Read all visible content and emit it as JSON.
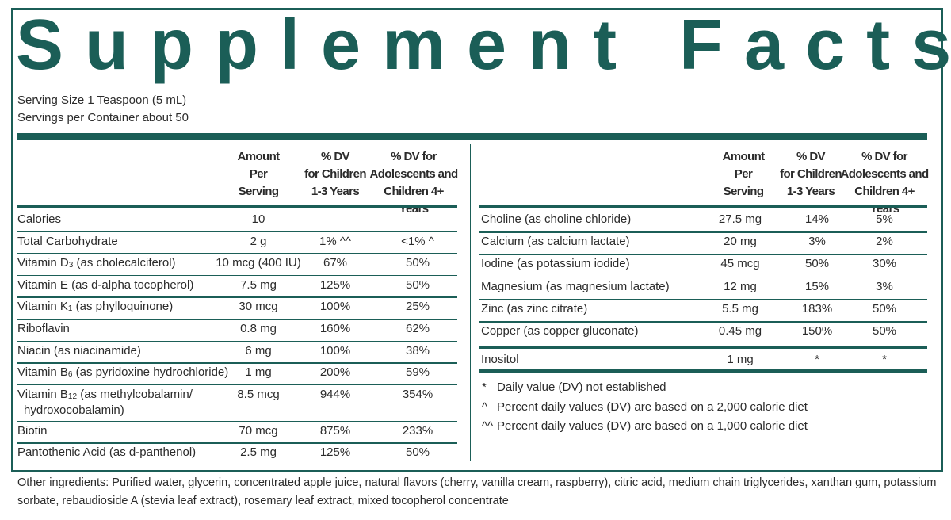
{
  "title": "Supplement Facts",
  "serving_size": "Serving Size 1 Teaspoon (5 mL)",
  "servings_per_container": "Servings per Container about 50",
  "columns": {
    "amount": [
      "Amount",
      "Per",
      "Serving"
    ],
    "dv_children": [
      "% DV",
      "for Children",
      "1-3 Years"
    ],
    "dv_adolescents": [
      "% DV for",
      "Adolescents and",
      "Children 4+ Years"
    ]
  },
  "left_rows": [
    {
      "name": "Calories",
      "amount": "10",
      "dv1": "",
      "dv2": ""
    },
    {
      "name": "Total Carbohydrate",
      "amount": "2 g",
      "dv1": "1% ^^",
      "dv2": "<1% ^"
    },
    {
      "name": "Vitamin D3 (as cholecalciferol)",
      "amount": "10 mcg (400 IU)",
      "dv1": "67%",
      "dv2": "50%"
    },
    {
      "name": "Vitamin E (as d-alpha tocopherol)",
      "amount": "7.5 mg",
      "dv1": "125%",
      "dv2": "50%"
    },
    {
      "name": "Vitamin K1 (as phylloquinone)",
      "amount": "30 mcg",
      "dv1": "100%",
      "dv2": "25%"
    },
    {
      "name": "Riboflavin",
      "amount": "0.8 mg",
      "dv1": "160%",
      "dv2": "62%"
    },
    {
      "name": "Niacin (as niacinamide)",
      "amount": "6 mg",
      "dv1": "100%",
      "dv2": "38%"
    },
    {
      "name": "Vitamin B6 (as pyridoxine hydrochloride)",
      "amount": "1 mg",
      "dv1": "200%",
      "dv2": "59%"
    },
    {
      "name": "Vitamin B12 (as methylcobalamin/",
      "name2": "hydroxocobalamin)",
      "amount": "8.5 mcg",
      "dv1": "944%",
      "dv2": "354%"
    },
    {
      "name": "Biotin",
      "amount": "70 mcg",
      "dv1": "875%",
      "dv2": "233%"
    },
    {
      "name": "Pantothenic Acid (as d-panthenol)",
      "amount": "2.5 mg",
      "dv1": "125%",
      "dv2": "50%"
    }
  ],
  "right_rows": [
    {
      "name": "Choline (as choline chloride)",
      "amount": "27.5 mg",
      "dv1": "14%",
      "dv2": "5%"
    },
    {
      "name": "Calcium (as calcium lactate)",
      "amount": "20 mg",
      "dv1": "3%",
      "dv2": "2%"
    },
    {
      "name": "Iodine (as potassium iodide)",
      "amount": "45 mcg",
      "dv1": "50%",
      "dv2": "30%"
    },
    {
      "name": "Magnesium (as magnesium lactate)",
      "amount": "12 mg",
      "dv1": "15%",
      "dv2": "3%"
    },
    {
      "name": "Zinc (as zinc citrate)",
      "amount": "5.5 mg",
      "dv1": "183%",
      "dv2": "50%"
    },
    {
      "name": "Copper (as copper gluconate)",
      "amount": "0.45 mg",
      "dv1": "150%",
      "dv2": "50%"
    },
    {
      "name": "Inositol",
      "amount": "1 mg",
      "dv1": "*",
      "dv2": "*"
    }
  ],
  "footnotes": [
    {
      "mark": "*",
      "text": "Daily value (DV) not established"
    },
    {
      "mark": "^",
      "text": "Percent daily values (DV) are based  on a 2,000 calorie diet"
    },
    {
      "mark": "^^",
      "text": "Percent daily values (DV) are based  on a 1,000 calorie diet"
    }
  ],
  "other_ingredients": "Other ingredients: Purified water, glycerin, concentrated apple juice, natural flavors (cherry, vanilla cream, raspberry), citric acid, medium chain triglycerides, xanthan gum, potassium sorbate, rebaudioside A (stevia leaf extract), rosemary leaf extract, mixed tocopherol concentrate",
  "colors": {
    "accent": "#1b5e57",
    "text": "#2b2b2b"
  }
}
